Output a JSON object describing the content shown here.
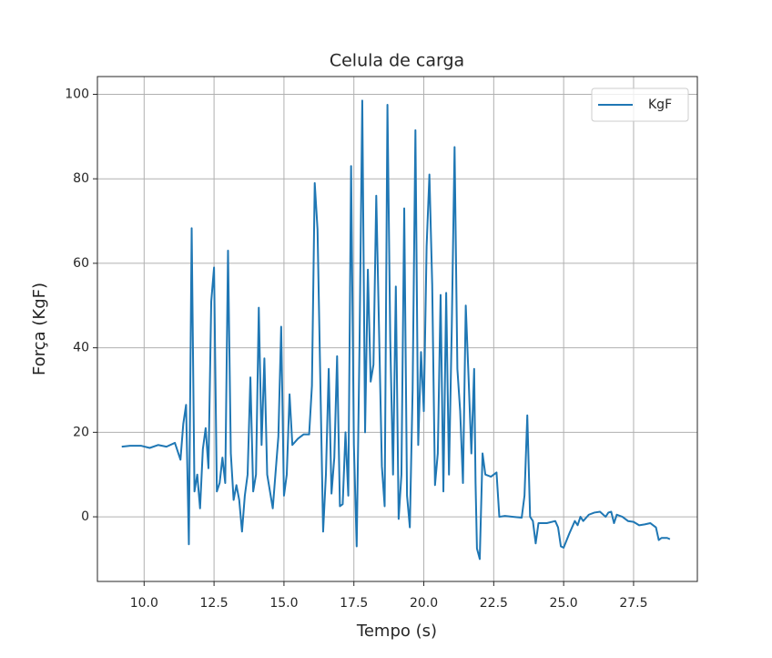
{
  "chart_data": {
    "type": "line",
    "title": "Celula de carga",
    "xlabel": "Tempo (s)",
    "ylabel": "Força (KgF)",
    "x": [
      9.2,
      9.5,
      9.9,
      10.2,
      10.5,
      10.8,
      11.1,
      11.3,
      11.4,
      11.5,
      11.6,
      11.7,
      11.8,
      11.9,
      12.0,
      12.1,
      12.2,
      12.3,
      12.4,
      12.5,
      12.6,
      12.7,
      12.8,
      12.9,
      13.0,
      13.1,
      13.2,
      13.3,
      13.4,
      13.5,
      13.6,
      13.7,
      13.8,
      13.9,
      14.0,
      14.1,
      14.2,
      14.3,
      14.4,
      14.6,
      14.8,
      14.9,
      15.0,
      15.1,
      15.2,
      15.3,
      15.5,
      15.7,
      15.9,
      16.0,
      16.1,
      16.2,
      16.4,
      16.5,
      16.6,
      16.7,
      16.8,
      16.9,
      17.0,
      17.1,
      17.2,
      17.3,
      17.4,
      17.5,
      17.6,
      17.7,
      17.8,
      17.9,
      18.0,
      18.1,
      18.2,
      18.3,
      18.4,
      18.5,
      18.6,
      18.7,
      18.8,
      18.9,
      19.0,
      19.1,
      19.2,
      19.3,
      19.4,
      19.5,
      19.6,
      19.7,
      19.8,
      19.9,
      20.0,
      20.1,
      20.2,
      20.3,
      20.4,
      20.5,
      20.6,
      20.7,
      20.8,
      20.9,
      21.0,
      21.1,
      21.2,
      21.3,
      21.4,
      21.5,
      21.6,
      21.7,
      21.8,
      21.85,
      21.9,
      22.0,
      22.1,
      22.2,
      22.4,
      22.6,
      22.7,
      22.9,
      23.2,
      23.5,
      23.6,
      23.7,
      23.8,
      23.9,
      24.0,
      24.1,
      24.4,
      24.7,
      24.8,
      24.9,
      25.0,
      25.2,
      25.4,
      25.5,
      25.6,
      25.7,
      25.9,
      26.1,
      26.3,
      26.5,
      26.6,
      26.7,
      26.8,
      26.9,
      27.1,
      27.3,
      27.5,
      27.7,
      27.9,
      28.1,
      28.3,
      28.4,
      28.5,
      28.7,
      28.8
    ],
    "series": [
      {
        "name": "KgF",
        "color": "#1f77b4",
        "values": [
          16.6,
          16.8,
          16.8,
          16.3,
          17.0,
          16.6,
          17.5,
          13.5,
          22,
          26.5,
          -6.5,
          68.3,
          6,
          10,
          2,
          16,
          21,
          11.5,
          51,
          59,
          6,
          8,
          14,
          8,
          63,
          15,
          4,
          7.5,
          4,
          -3.5,
          5,
          10,
          33,
          6,
          10,
          49.5,
          17,
          37.5,
          10,
          2,
          19,
          45,
          5,
          10,
          29,
          17,
          18.5,
          19.5,
          19.5,
          31,
          79,
          68,
          -3.5,
          10,
          35,
          5.5,
          14,
          38,
          2.5,
          3,
          20,
          5,
          83,
          17,
          -7,
          40,
          98.5,
          20,
          58.5,
          32,
          36,
          76,
          44,
          12,
          2.5,
          97.5,
          42,
          10,
          54.5,
          -0.5,
          10,
          73,
          5,
          -2.5,
          30,
          91.5,
          17,
          39,
          25,
          64,
          81,
          55,
          7.5,
          15,
          52.5,
          6,
          53,
          10,
          45,
          87.5,
          35,
          25,
          8,
          50,
          33,
          15,
          35,
          8,
          -7.5,
          -10,
          15,
          10,
          9.5,
          10.5,
          0,
          0.2,
          0,
          -0.2,
          5,
          24,
          0,
          -1,
          -6.3,
          -1.5,
          -1.5,
          -1,
          -2.5,
          -7,
          -7.3,
          -4,
          -1,
          -2,
          0,
          -1,
          0.5,
          1,
          1.2,
          0,
          1,
          1.2,
          -1.5,
          0.5,
          0,
          -1,
          -1.2,
          -2,
          -1.8,
          -1.5,
          -2.5,
          -5.5,
          -5,
          -5,
          -5.3
        ]
      }
    ],
    "xlim": [
      8.33,
      29.78
    ],
    "ylim": [
      -15.3,
      104.2
    ],
    "xticks": [
      {
        "value": 10,
        "label": "10.0"
      },
      {
        "value": 12.5,
        "label": "12.5"
      },
      {
        "value": 15,
        "label": "15.0"
      },
      {
        "value": 17.5,
        "label": "17.5"
      },
      {
        "value": 20,
        "label": "20.0"
      },
      {
        "value": 22.5,
        "label": "22.5"
      },
      {
        "value": 25,
        "label": "25.0"
      },
      {
        "value": 27.5,
        "label": "27.5"
      }
    ],
    "yticks": [
      0,
      20,
      40,
      60,
      80,
      100
    ],
    "grid": true,
    "legend": "upper right"
  }
}
